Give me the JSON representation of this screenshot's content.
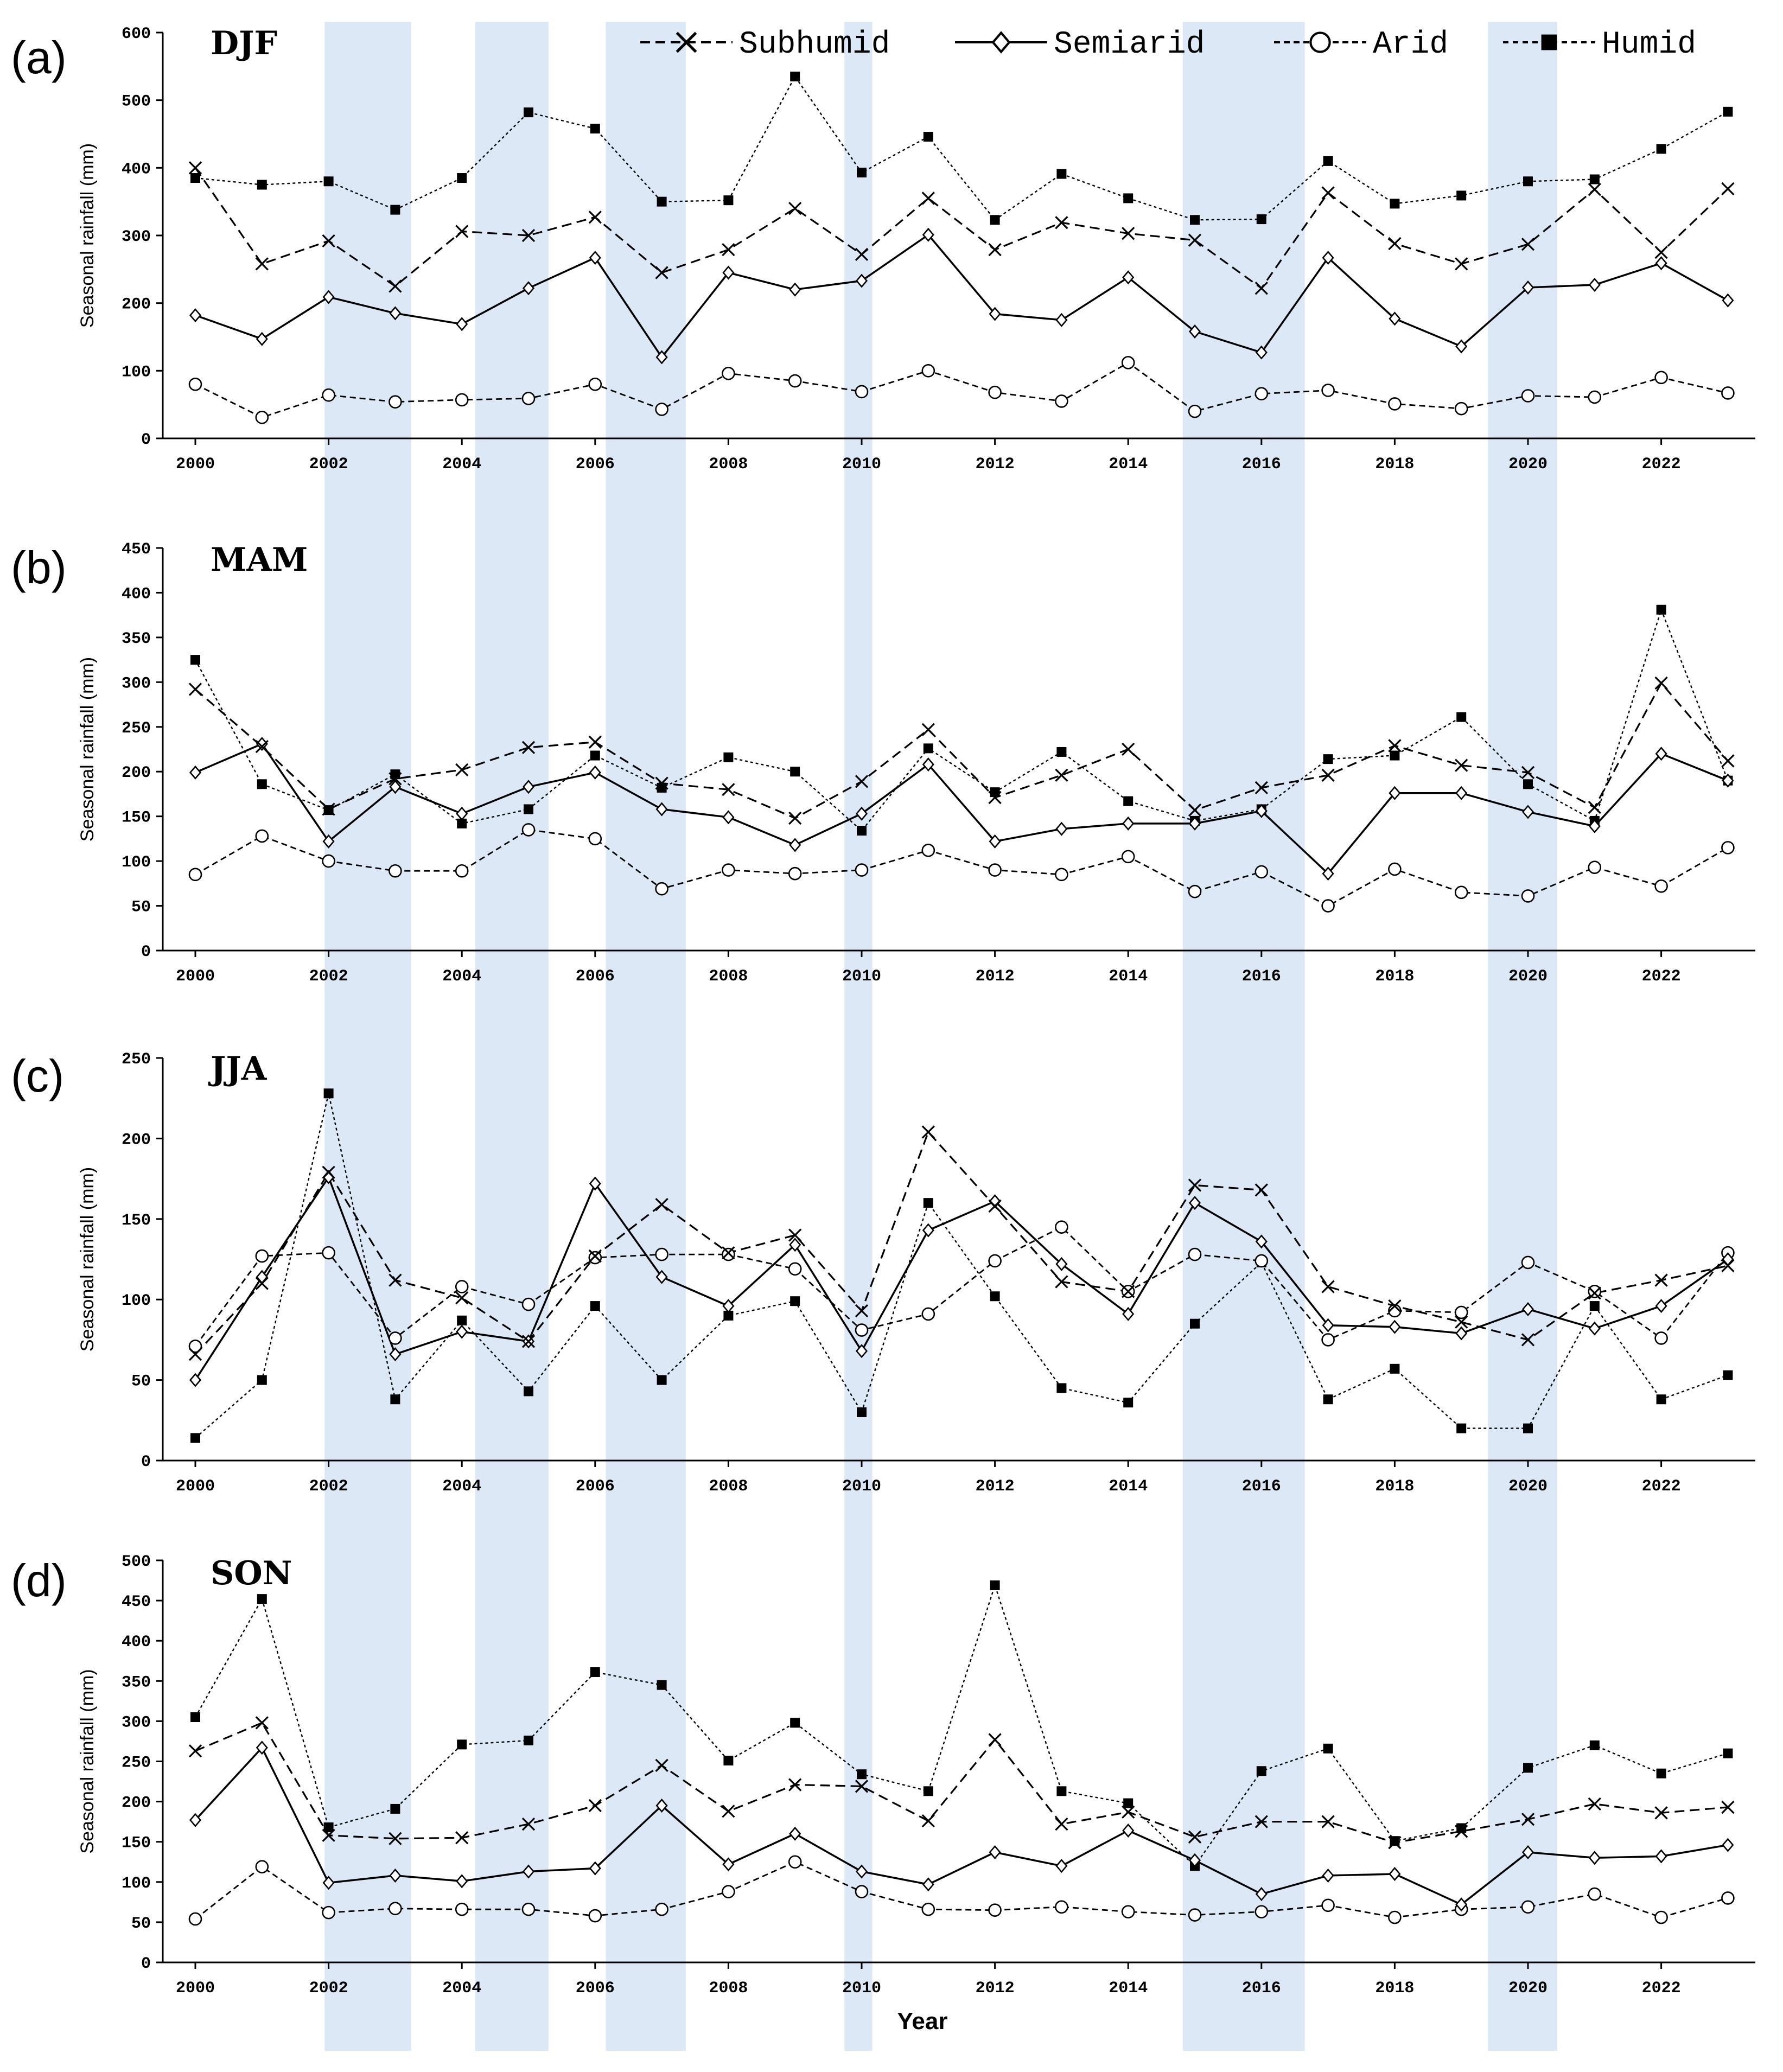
{
  "figure": {
    "x_axis_title": "Year",
    "highlight_years": [
      2002,
      2005,
      2007,
      2010,
      2016,
      2020
    ],
    "shading_color": "#dce8f6",
    "legend": [
      {
        "series": "Subhumid",
        "label": "Subhumid"
      },
      {
        "series": "Semiarid",
        "label": "Semiarid"
      },
      {
        "series": "Arid",
        "label": "Arid"
      },
      {
        "series": "Humid",
        "label": "Humid"
      }
    ]
  },
  "chart_data": [
    {
      "type": "line",
      "panel_label": "(a)",
      "title": "DJF",
      "xlabel": "",
      "ylabel": "Seasonal rainfall (mm)",
      "x": [
        2000,
        2001,
        2002,
        2003,
        2004,
        2005,
        2006,
        2007,
        2008,
        2009,
        2010,
        2011,
        2012,
        2013,
        2014,
        2015,
        2016,
        2017,
        2018,
        2019,
        2020,
        2021,
        2022,
        2023
      ],
      "xticks": [
        2000,
        2002,
        2004,
        2006,
        2008,
        2010,
        2012,
        2014,
        2016,
        2018,
        2020,
        2022
      ],
      "ylim": [
        0,
        600
      ],
      "yticks": [
        0,
        100,
        200,
        300,
        400,
        500,
        600
      ],
      "series": [
        {
          "name": "Subhumid",
          "values": [
            400,
            258,
            292,
            225,
            306,
            300,
            327,
            245,
            279,
            340,
            272,
            355,
            279,
            319,
            303,
            293,
            222,
            363,
            288,
            258,
            287,
            368,
            275,
            369
          ]
        },
        {
          "name": "Semiarid",
          "values": [
            182,
            147,
            209,
            185,
            169,
            222,
            267,
            120,
            245,
            220,
            233,
            301,
            184,
            175,
            238,
            158,
            127,
            267,
            177,
            136,
            223,
            227,
            259,
            204
          ]
        },
        {
          "name": "Arid",
          "values": [
            80,
            31,
            64,
            54,
            57,
            59,
            80,
            43,
            96,
            85,
            69,
            100,
            68,
            55,
            112,
            40,
            66,
            71,
            51,
            44,
            63,
            61,
            90,
            67
          ]
        },
        {
          "name": "Humid",
          "values": [
            385,
            375,
            380,
            338,
            385,
            482,
            458,
            350,
            352,
            535,
            393,
            446,
            323,
            391,
            355,
            323,
            324,
            410,
            347,
            359,
            380,
            383,
            428,
            483
          ]
        }
      ]
    },
    {
      "type": "line",
      "panel_label": "(b)",
      "title": "MAM",
      "xlabel": "",
      "ylabel": "Seasonal rainfall (mm)",
      "x": [
        2000,
        2001,
        2002,
        2003,
        2004,
        2005,
        2006,
        2007,
        2008,
        2009,
        2010,
        2011,
        2012,
        2013,
        2014,
        2015,
        2016,
        2017,
        2018,
        2019,
        2020,
        2021,
        2022,
        2023
      ],
      "xticks": [
        2000,
        2002,
        2004,
        2006,
        2008,
        2010,
        2012,
        2014,
        2016,
        2018,
        2020,
        2022
      ],
      "ylim": [
        0,
        450
      ],
      "yticks": [
        0,
        50,
        100,
        150,
        200,
        250,
        300,
        350,
        400,
        450
      ],
      "series": [
        {
          "name": "Subhumid",
          "values": [
            292,
            228,
            158,
            192,
            202,
            227,
            233,
            187,
            180,
            148,
            189,
            247,
            171,
            196,
            225,
            157,
            182,
            196,
            229,
            207,
            199,
            160,
            299,
            212
          ]
        },
        {
          "name": "Semiarid",
          "values": [
            199,
            231,
            122,
            183,
            153,
            183,
            199,
            158,
            149,
            118,
            153,
            208,
            122,
            136,
            142,
            142,
            156,
            86,
            176,
            176,
            155,
            139,
            220,
            190
          ]
        },
        {
          "name": "Arid",
          "values": [
            85,
            128,
            100,
            89,
            89,
            135,
            125,
            69,
            90,
            86,
            90,
            112,
            90,
            85,
            105,
            66,
            88,
            50,
            91,
            65,
            61,
            93,
            72,
            115
          ]
        },
        {
          "name": "Humid",
          "values": [
            325,
            186,
            157,
            197,
            142,
            158,
            218,
            182,
            216,
            200,
            134,
            226,
            177,
            222,
            167,
            145,
            158,
            214,
            218,
            261,
            186,
            145,
            381,
            190
          ]
        }
      ]
    },
    {
      "type": "line",
      "panel_label": "(c)",
      "title": "JJA",
      "xlabel": "",
      "ylabel": "Seasonal rainfall (mm)",
      "x": [
        2000,
        2001,
        2002,
        2003,
        2004,
        2005,
        2006,
        2007,
        2008,
        2009,
        2010,
        2011,
        2012,
        2013,
        2014,
        2015,
        2016,
        2017,
        2018,
        2019,
        2020,
        2021,
        2022,
        2023
      ],
      "xticks": [
        2000,
        2002,
        2004,
        2006,
        2008,
        2010,
        2012,
        2014,
        2016,
        2018,
        2020,
        2022
      ],
      "ylim": [
        0,
        250
      ],
      "yticks": [
        0,
        50,
        100,
        150,
        200,
        250
      ],
      "series": [
        {
          "name": "Subhumid",
          "values": [
            66,
            110,
            179,
            112,
            101,
            74,
            127,
            159,
            129,
            140,
            93,
            204,
            158,
            111,
            105,
            171,
            168,
            108,
            96,
            86,
            75,
            104,
            112,
            121
          ]
        },
        {
          "name": "Semiarid",
          "values": [
            50,
            114,
            176,
            66,
            80,
            74,
            172,
            114,
            96,
            134,
            68,
            143,
            161,
            122,
            91,
            160,
            136,
            84,
            83,
            79,
            94,
            82,
            96,
            125
          ]
        },
        {
          "name": "Arid",
          "values": [
            71,
            127,
            129,
            76,
            108,
            97,
            126,
            128,
            128,
            119,
            81,
            91,
            124,
            145,
            105,
            128,
            124,
            75,
            93,
            92,
            123,
            105,
            76,
            129
          ]
        },
        {
          "name": "Humid",
          "values": [
            14,
            50,
            228,
            38,
            87,
            43,
            96,
            50,
            90,
            99,
            30,
            160,
            102,
            45,
            36,
            85,
            123,
            38,
            57,
            20,
            20,
            96,
            38,
            53
          ]
        }
      ]
    },
    {
      "type": "line",
      "panel_label": "(d)",
      "title": "SON",
      "xlabel": "Year",
      "ylabel": "Seasonal rainfall (mm)",
      "x": [
        2000,
        2001,
        2002,
        2003,
        2004,
        2005,
        2006,
        2007,
        2008,
        2009,
        2010,
        2011,
        2012,
        2013,
        2014,
        2015,
        2016,
        2017,
        2018,
        2019,
        2020,
        2021,
        2022,
        2023
      ],
      "xticks": [
        2000,
        2002,
        2004,
        2006,
        2008,
        2010,
        2012,
        2014,
        2016,
        2018,
        2020,
        2022
      ],
      "ylim": [
        0,
        500
      ],
      "yticks": [
        0,
        50,
        100,
        150,
        200,
        250,
        300,
        350,
        400,
        450,
        500
      ],
      "series": [
        {
          "name": "Subhumid",
          "values": [
            263,
            298,
            158,
            154,
            155,
            172,
            195,
            245,
            188,
            221,
            219,
            176,
            277,
            172,
            187,
            156,
            175,
            175,
            149,
            163,
            178,
            197,
            186,
            193
          ]
        },
        {
          "name": "Semiarid",
          "values": [
            177,
            267,
            99,
            108,
            101,
            113,
            117,
            195,
            122,
            160,
            113,
            97,
            137,
            120,
            164,
            127,
            85,
            108,
            110,
            72,
            137,
            130,
            132,
            146
          ]
        },
        {
          "name": "Arid",
          "values": [
            54,
            119,
            62,
            67,
            66,
            66,
            58,
            66,
            88,
            125,
            88,
            66,
            65,
            69,
            63,
            59,
            63,
            71,
            56,
            66,
            69,
            85,
            56,
            80
          ]
        },
        {
          "name": "Humid",
          "values": [
            305,
            452,
            168,
            191,
            271,
            276,
            361,
            345,
            251,
            298,
            234,
            213,
            469,
            213,
            198,
            120,
            238,
            266,
            151,
            167,
            242,
            270,
            235,
            260
          ]
        }
      ]
    }
  ]
}
